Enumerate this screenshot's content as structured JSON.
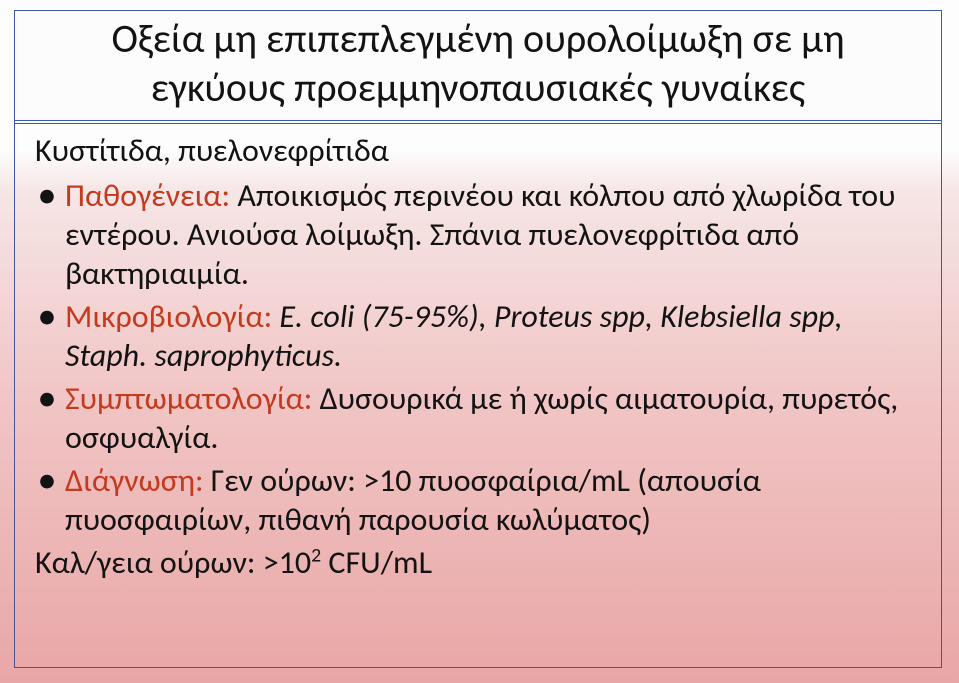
{
  "title": {
    "line1": "Οξεία μη επιπεπλεγμένη ουρολοίμωξη σε μη",
    "line2": "εγκύους προεμμηνοπαυσιακές γυναίκες"
  },
  "subtitle": "Κυστίτιδα, πυελονεφρίτιδα",
  "bullets": [
    {
      "label": "Παθογένεια:",
      "text": " Αποικισμός περινέου και κόλπου από χλωρίδα του εντέρου. Ανιούσα λοίμωξη. Σπάνια πυελονεφρίτιδα από βακτηριαιμία."
    },
    {
      "label": "Μικροβιολογία:",
      "italic": " E. coli (75-95%), Proteus spp, Klebsiella spp, Staph. saprophyticus."
    },
    {
      "label": "Συμπτωματολογία:",
      "text": " Δυσουρικά με ή χωρίς αιματουρία, πυρετός, οσφυαλγία."
    },
    {
      "label": "Διάγνωση:",
      "text": " Γεν ούρων: >10 πυοσφαίρια/mL (απουσία πυοσφαιρίων, πιθανή παρουσία κωλύματος)"
    }
  ],
  "footer": {
    "prefix": "Καλ/γεια ούρων: >10",
    "sup": "2",
    "suffix": " CFU/mL"
  },
  "colors": {
    "label": "#c33b1f",
    "text": "#131313",
    "border": "#3b5aa6",
    "bg_top": "#fdfdfd",
    "bg_bottom": "#e9a6a6"
  }
}
